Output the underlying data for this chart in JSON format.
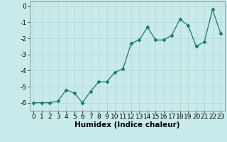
{
  "x": [
    0,
    1,
    2,
    3,
    4,
    5,
    6,
    7,
    8,
    9,
    10,
    11,
    12,
    13,
    14,
    15,
    16,
    17,
    18,
    19,
    20,
    21,
    22,
    23
  ],
  "y": [
    -6.0,
    -6.0,
    -6.0,
    -5.9,
    -5.2,
    -5.4,
    -6.0,
    -5.3,
    -4.7,
    -4.7,
    -4.1,
    -3.9,
    -2.3,
    -2.1,
    -1.3,
    -2.1,
    -2.1,
    -1.8,
    -0.8,
    -1.2,
    -2.5,
    -2.2,
    -0.2,
    -1.7
  ],
  "line_color": "#1a7a6a",
  "marker": "D",
  "marker_size": 2.5,
  "bg_color": "#c8eaea",
  "grid_color": "#b8d8d8",
  "xlabel": "Humidex (Indice chaleur)",
  "xlim": [
    -0.5,
    23.5
  ],
  "ylim": [
    -6.5,
    0.3
  ],
  "yticks": [
    0,
    -1,
    -2,
    -3,
    -4,
    -5,
    -6
  ],
  "xticks": [
    0,
    1,
    2,
    3,
    4,
    5,
    6,
    7,
    8,
    9,
    10,
    11,
    12,
    13,
    14,
    15,
    16,
    17,
    18,
    19,
    20,
    21,
    22,
    23
  ],
  "xlabel_fontsize": 7.5,
  "tick_fontsize": 6.5
}
